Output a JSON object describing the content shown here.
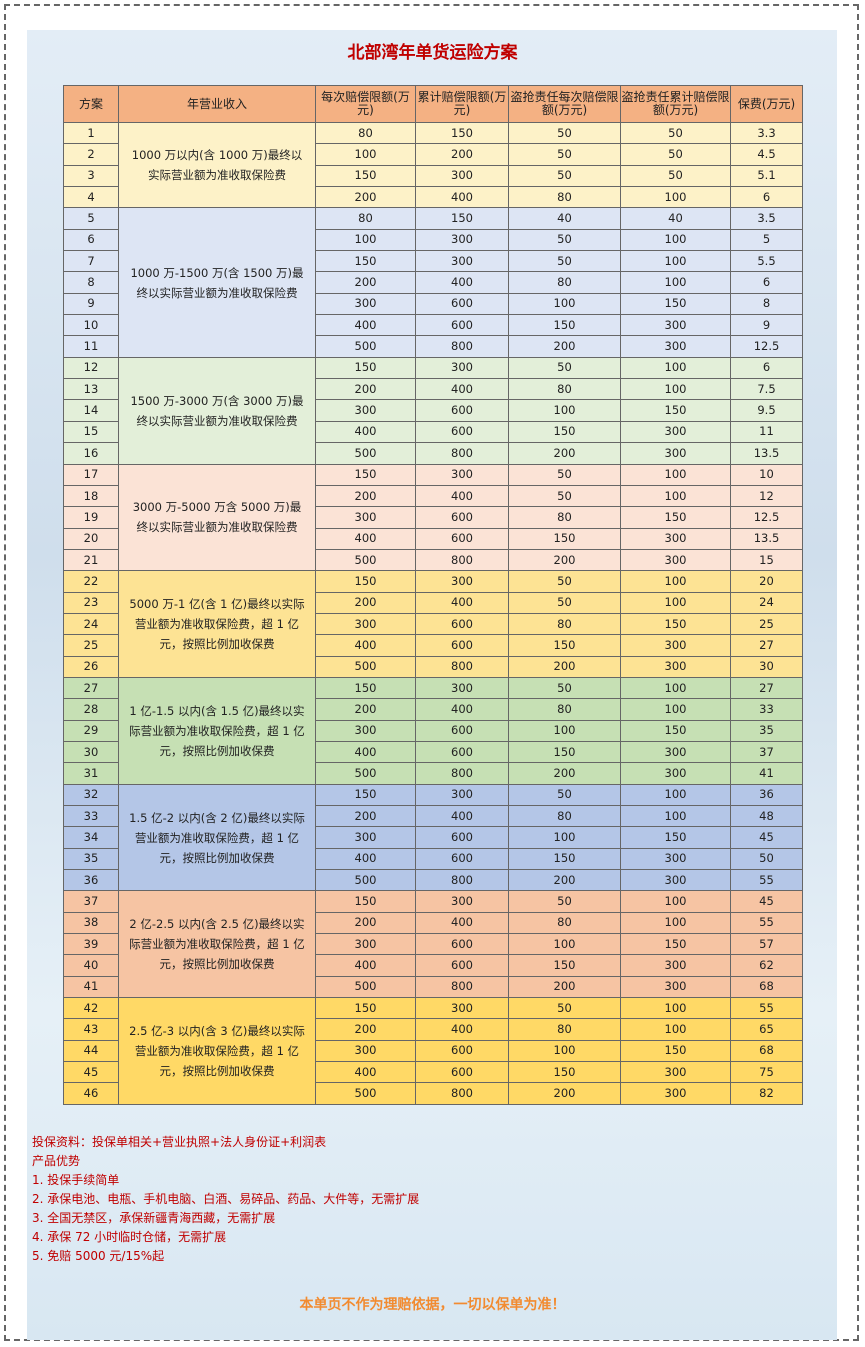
{
  "header": {
    "title": "北部湾年单货运险方案"
  },
  "table": {
    "columns": [
      "方案",
      "年营业收入",
      "每次赔偿限额(万元)",
      "累计赔偿限额(万元)",
      "盗抢责任每次赔偿限额(万元)",
      "盗抢责任累计赔偿限额(万元)",
      "保费(万元)"
    ],
    "header_color": "#f4b183",
    "groups": [
      {
        "income": "1000 万以内(含 1000 万)最终以实际营业额为准收取保险费",
        "color": "#fdf2c8",
        "rows": [
          [
            1,
            80,
            150,
            50,
            50,
            3.3
          ],
          [
            2,
            100,
            200,
            50,
            50,
            4.5
          ],
          [
            3,
            150,
            300,
            50,
            50,
            5.1
          ],
          [
            4,
            200,
            400,
            80,
            100,
            6
          ]
        ]
      },
      {
        "income": "1000 万-1500 万(含 1500 万)最终以实际营业额为准收取保险费",
        "color": "#dde5f4",
        "rows": [
          [
            5,
            80,
            150,
            40,
            40,
            3.5
          ],
          [
            6,
            100,
            300,
            50,
            100,
            5
          ],
          [
            7,
            150,
            300,
            50,
            100,
            5.5
          ],
          [
            8,
            200,
            400,
            80,
            100,
            6
          ],
          [
            9,
            300,
            600,
            100,
            150,
            8
          ],
          [
            10,
            400,
            600,
            150,
            300,
            9
          ],
          [
            11,
            500,
            800,
            200,
            300,
            12.5
          ]
        ]
      },
      {
        "income": "1500 万-3000 万(含 3000 万)最终以实际营业额为准收取保险费",
        "color": "#e3efd9",
        "rows": [
          [
            12,
            150,
            300,
            50,
            100,
            6
          ],
          [
            13,
            200,
            400,
            80,
            100,
            7.5
          ],
          [
            14,
            300,
            600,
            100,
            150,
            9.5
          ],
          [
            15,
            400,
            600,
            150,
            300,
            11
          ],
          [
            16,
            500,
            800,
            200,
            300,
            13.5
          ]
        ]
      },
      {
        "income": "3000 万-5000 万含 5000 万)最终以实际营业额为准收取保险费",
        "color": "#fbe3d6",
        "rows": [
          [
            17,
            150,
            300,
            50,
            100,
            10
          ],
          [
            18,
            200,
            400,
            50,
            100,
            12
          ],
          [
            19,
            300,
            600,
            80,
            150,
            12.5
          ],
          [
            20,
            400,
            600,
            150,
            300,
            13.5
          ],
          [
            21,
            500,
            800,
            200,
            300,
            15
          ]
        ]
      },
      {
        "income": "5000 万-1 亿(含 1 亿)最终以实际营业额为准收取保险费，超 1 亿元，按照比例加收保费",
        "color": "#fde394",
        "rows": [
          [
            22,
            150,
            300,
            50,
            100,
            20
          ],
          [
            23,
            200,
            400,
            50,
            100,
            24
          ],
          [
            24,
            300,
            600,
            80,
            150,
            25
          ],
          [
            25,
            400,
            600,
            150,
            300,
            27
          ],
          [
            26,
            500,
            800,
            200,
            300,
            30
          ]
        ]
      },
      {
        "income": "1 亿-1.5 以内(含 1.5 亿)最终以实际营业额为准收取保险费，超 1 亿元，按照比例加收保费",
        "color": "#c6e0b4",
        "rows": [
          [
            27,
            150,
            300,
            50,
            100,
            27
          ],
          [
            28,
            200,
            400,
            80,
            100,
            33
          ],
          [
            29,
            300,
            600,
            100,
            150,
            35
          ],
          [
            30,
            400,
            600,
            150,
            300,
            37
          ],
          [
            31,
            500,
            800,
            200,
            300,
            41
          ]
        ]
      },
      {
        "income": "1.5 亿-2 以内(含 2 亿)最终以实际营业额为准收取保险费，超 1 亿元，按照比例加收保费",
        "color": "#b4c6e7",
        "rows": [
          [
            32,
            150,
            300,
            50,
            100,
            36
          ],
          [
            33,
            200,
            400,
            80,
            100,
            48
          ],
          [
            34,
            300,
            600,
            100,
            150,
            45
          ],
          [
            35,
            400,
            600,
            150,
            300,
            50
          ],
          [
            36,
            500,
            800,
            200,
            300,
            55
          ]
        ]
      },
      {
        "income": "2 亿-2.5 以内(含 2.5 亿)最终以实际营业额为准收取保险费，超 1 亿元，按照比例加收保费",
        "color": "#f6c4a3",
        "rows": [
          [
            37,
            150,
            300,
            50,
            100,
            45
          ],
          [
            38,
            200,
            400,
            80,
            100,
            55
          ],
          [
            39,
            300,
            600,
            100,
            150,
            57
          ],
          [
            40,
            400,
            600,
            150,
            300,
            62
          ],
          [
            41,
            500,
            800,
            200,
            300,
            68
          ]
        ]
      },
      {
        "income": "2.5 亿-3 以内(含 3 亿)最终以实际营业额为准收取保险费，超 1 亿元，按照比例加收保费",
        "color": "#ffd966",
        "rows": [
          [
            42,
            150,
            300,
            50,
            100,
            55
          ],
          [
            43,
            200,
            400,
            80,
            100,
            65
          ],
          [
            44,
            300,
            600,
            100,
            150,
            68
          ],
          [
            45,
            400,
            600,
            150,
            300,
            75
          ],
          [
            46,
            500,
            800,
            200,
            300,
            82
          ]
        ]
      }
    ]
  },
  "notes": [
    "投保资料：投保单相关+营业执照+法人身份证+利润表",
    "产品优势",
    "1. 投保手续简单",
    "2. 承保电池、电瓶、手机电脑、白酒、易碎品、药品、大件等，无需扩展",
    "3. 全国无禁区，承保新疆青海西藏，无需扩展",
    "4. 承保 72 小时临时仓储，无需扩展",
    "5. 免赔 5000 元/15%起"
  ],
  "footer": "本单页不作为理赔依据，一切以保单为准！"
}
